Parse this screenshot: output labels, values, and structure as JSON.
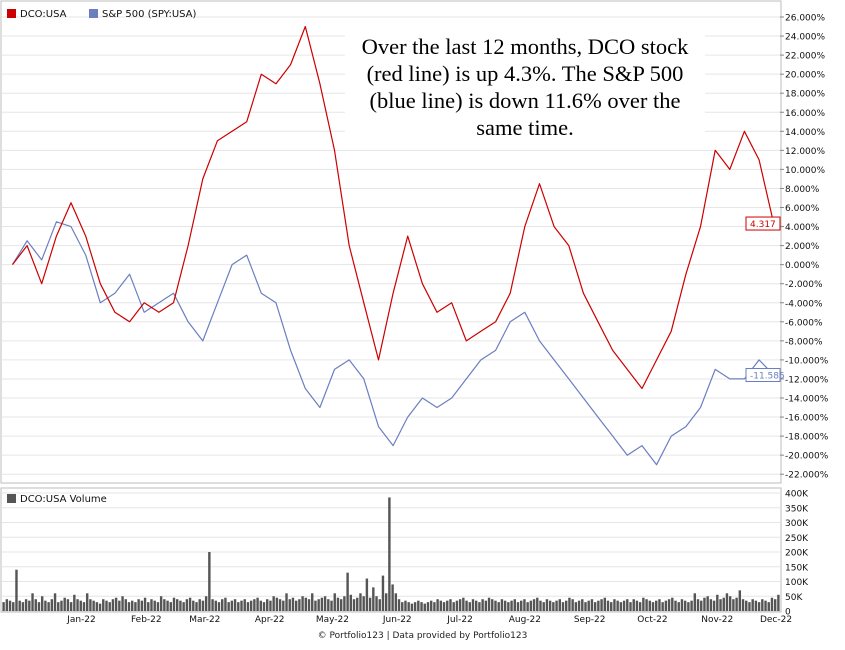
{
  "chart_data": [
    {
      "type": "line",
      "annotation": "Over the last 12 months, DCO stock (red line) is up 4.3%. The S&P 500 (blue line) is down 11.6% over the same time.",
      "x_ticks": [
        "Jan-22",
        "Feb-22",
        "Mar-22",
        "Apr-22",
        "May-22",
        "Jun-22",
        "Jul-22",
        "Aug-22",
        "Sep-22",
        "Oct-22",
        "Nov-22",
        "Dec-22"
      ],
      "y_ticks": [
        "26.000%",
        "24.000%",
        "22.000%",
        "20.000%",
        "18.000%",
        "16.000%",
        "14.000%",
        "12.000%",
        "10.000%",
        "8.000%",
        "6.000%",
        "4.000%",
        "2.000%",
        "0.000%",
        "-2.000%",
        "-4.000%",
        "-6.000%",
        "-8.000%",
        "-10.000%",
        "-12.000%",
        "-14.000%",
        "-16.000%",
        "-18.000%",
        "-20.000%",
        "-22.000%"
      ],
      "ylim": [
        -23,
        27
      ],
      "x": [
        "2021-12-13",
        "2021-12-20",
        "2021-12-27",
        "2022-01-03",
        "2022-01-10",
        "2022-01-17",
        "2022-01-24",
        "2022-01-31",
        "2022-02-07",
        "2022-02-14",
        "2022-02-21",
        "2022-02-28",
        "2022-03-07",
        "2022-03-14",
        "2022-03-21",
        "2022-03-28",
        "2022-04-04",
        "2022-04-11",
        "2022-04-18",
        "2022-04-25",
        "2022-05-02",
        "2022-05-09",
        "2022-05-16",
        "2022-05-23",
        "2022-05-30",
        "2022-06-06",
        "2022-06-13",
        "2022-06-20",
        "2022-06-27",
        "2022-07-04",
        "2022-07-11",
        "2022-07-18",
        "2022-07-25",
        "2022-08-01",
        "2022-08-08",
        "2022-08-15",
        "2022-08-22",
        "2022-08-29",
        "2022-09-05",
        "2022-09-12",
        "2022-09-19",
        "2022-09-26",
        "2022-10-03",
        "2022-10-10",
        "2022-10-17",
        "2022-10-24",
        "2022-10-31",
        "2022-11-07",
        "2022-11-14",
        "2022-11-21",
        "2022-11-28",
        "2022-12-05",
        "2022-12-12"
      ],
      "legend_position": "top-left",
      "series": [
        {
          "name": "DCO:USA",
          "color": "#cc0000",
          "end_label": "4.317",
          "values": [
            0.0,
            2.0,
            -2.0,
            3.0,
            6.5,
            3.0,
            -2.0,
            -5.0,
            -6.0,
            -4.0,
            -5.0,
            -4.0,
            2.0,
            9.0,
            13.0,
            14.0,
            15.0,
            20.0,
            19.0,
            21.0,
            25.0,
            19.0,
            12.0,
            2.0,
            -4.0,
            -10.0,
            -3.0,
            3.0,
            -2.0,
            -5.0,
            -4.0,
            -8.0,
            -7.0,
            -6.0,
            -3.0,
            4.0,
            8.5,
            4.0,
            2.0,
            -3.0,
            -6.0,
            -9.0,
            -11.0,
            -13.0,
            -10.0,
            -7.0,
            -1.0,
            4.0,
            12.0,
            10.0,
            14.0,
            11.0,
            4.317
          ]
        },
        {
          "name": "S&P 500 (SPY:USA)",
          "color": "#6b7fbf",
          "end_label": "-11.585",
          "values": [
            0.0,
            2.5,
            0.5,
            4.5,
            4.0,
            1.0,
            -4.0,
            -3.0,
            -1.0,
            -5.0,
            -4.0,
            -3.0,
            -6.0,
            -8.0,
            -4.0,
            0.0,
            1.0,
            -3.0,
            -4.0,
            -9.0,
            -13.0,
            -15.0,
            -11.0,
            -10.0,
            -12.0,
            -17.0,
            -19.0,
            -16.0,
            -14.0,
            -15.0,
            -14.0,
            -12.0,
            -10.0,
            -9.0,
            -6.0,
            -5.0,
            -8.0,
            -10.0,
            -12.0,
            -14.0,
            -16.0,
            -18.0,
            -20.0,
            -19.0,
            -21.0,
            -18.0,
            -17.0,
            -15.0,
            -11.0,
            -12.0,
            -12.0,
            -10.0,
            -11.585
          ]
        }
      ]
    },
    {
      "type": "bar",
      "legend": "DCO:USA Volume",
      "y_ticks": [
        "400K",
        "350K",
        "300K",
        "250K",
        "200K",
        "150K",
        "100K",
        "50K",
        "0"
      ],
      "ylim": [
        0,
        400000
      ],
      "x_ticks": [
        "Jan-22",
        "Feb-22",
        "Mar-22",
        "Apr-22",
        "May-22",
        "Jun-22",
        "Jul-22",
        "Aug-22",
        "Sep-22",
        "Oct-22",
        "Nov-22",
        "Dec-22"
      ],
      "series": [
        {
          "name": "DCO:USA Volume",
          "color": "#555555",
          "values": [
            30000,
            40000,
            35000,
            30000,
            140000,
            35000,
            30000,
            40000,
            35000,
            60000,
            40000,
            30000,
            50000,
            35000,
            30000,
            40000,
            60000,
            30000,
            35000,
            45000,
            40000,
            30000,
            55000,
            40000,
            35000,
            30000,
            60000,
            40000,
            35000,
            30000,
            25000,
            40000,
            35000,
            30000,
            40000,
            45000,
            35000,
            50000,
            40000,
            30000,
            35000,
            30000,
            40000,
            35000,
            45000,
            30000,
            40000,
            35000,
            30000,
            50000,
            40000,
            35000,
            30000,
            45000,
            40000,
            35000,
            30000,
            40000,
            45000,
            35000,
            30000,
            40000,
            35000,
            50000,
            200000,
            40000,
            35000,
            30000,
            40000,
            45000,
            30000,
            35000,
            40000,
            30000,
            35000,
            40000,
            30000,
            35000,
            40000,
            45000,
            35000,
            30000,
            40000,
            35000,
            50000,
            45000,
            40000,
            35000,
            60000,
            40000,
            45000,
            35000,
            40000,
            50000,
            45000,
            40000,
            60000,
            35000,
            40000,
            45000,
            50000,
            40000,
            35000,
            60000,
            45000,
            40000,
            50000,
            130000,
            55000,
            40000,
            45000,
            60000,
            50000,
            110000,
            45000,
            80000,
            50000,
            40000,
            120000,
            60000,
            385000,
            90000,
            60000,
            40000,
            30000,
            35000,
            30000,
            25000,
            30000,
            35000,
            30000,
            25000,
            30000,
            35000,
            30000,
            40000,
            35000,
            30000,
            35000,
            40000,
            30000,
            35000,
            40000,
            45000,
            35000,
            30000,
            40000,
            35000,
            30000,
            40000,
            35000,
            45000,
            40000,
            35000,
            30000,
            40000,
            35000,
            30000,
            35000,
            40000,
            30000,
            35000,
            40000,
            30000,
            35000,
            40000,
            45000,
            35000,
            30000,
            40000,
            35000,
            30000,
            35000,
            40000,
            30000,
            35000,
            45000,
            40000,
            30000,
            35000,
            40000,
            30000,
            35000,
            40000,
            30000,
            35000,
            40000,
            45000,
            35000,
            30000,
            40000,
            35000,
            30000,
            35000,
            40000,
            30000,
            40000,
            35000,
            30000,
            45000,
            40000,
            35000,
            30000,
            35000,
            40000,
            30000,
            35000,
            40000,
            45000,
            35000,
            30000,
            40000,
            35000,
            30000,
            35000,
            60000,
            40000,
            35000,
            45000,
            50000,
            40000,
            35000,
            55000,
            40000,
            45000,
            60000,
            50000,
            40000,
            45000,
            70000,
            40000,
            35000,
            30000,
            40000,
            35000,
            30000,
            40000,
            35000,
            30000,
            45000,
            40000,
            55000
          ]
        }
      ]
    }
  ],
  "footer": "© Portfolio123 | Data provided by Portfolio123"
}
